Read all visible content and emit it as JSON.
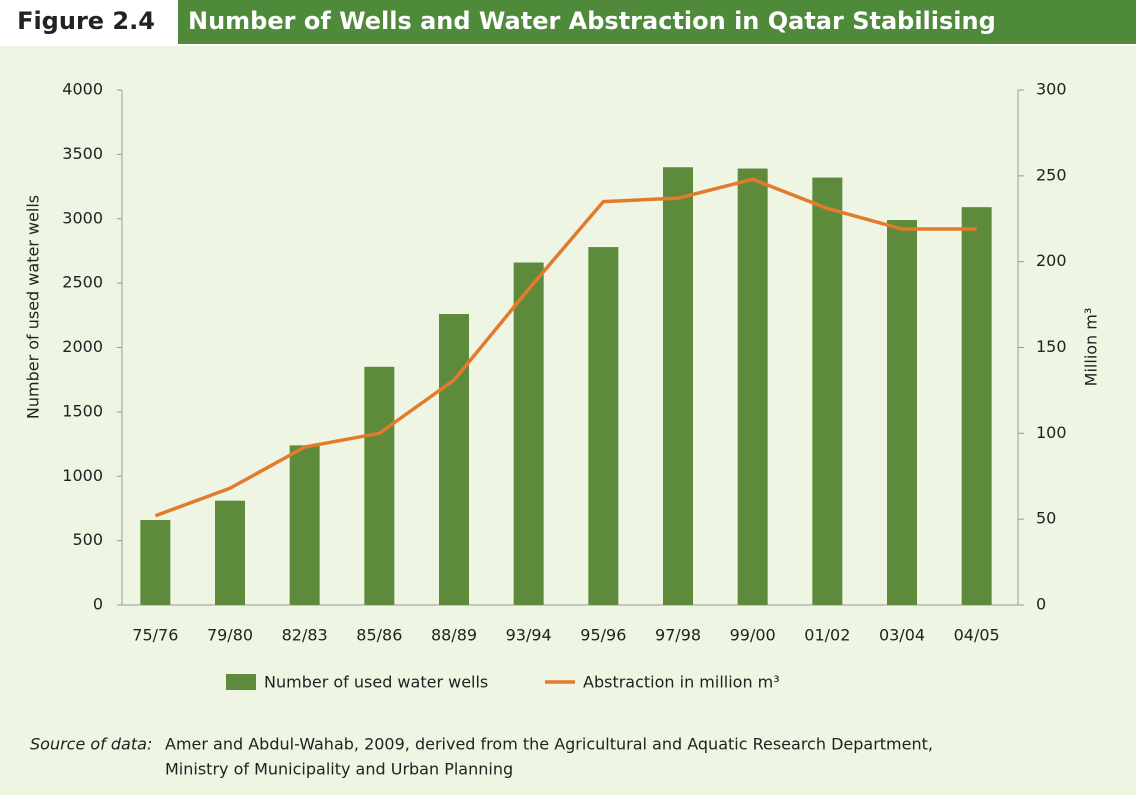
{
  "figure_label": "Figure 2.4",
  "chart_data": {
    "type": "bar",
    "title": "Number of Wells and Water Abstraction in Qatar Stabilising",
    "categories": [
      "75/76",
      "79/80",
      "82/83",
      "85/86",
      "88/89",
      "93/94",
      "95/96",
      "97/98",
      "99/00",
      "01/02",
      "03/04",
      "04/05"
    ],
    "series": [
      {
        "name": "Number of used water wells",
        "type": "bar",
        "color": "#5e8b3b",
        "values": [
          660,
          810,
          1240,
          1850,
          2260,
          2660,
          2780,
          3400,
          3390,
          3320,
          2990,
          3090
        ]
      },
      {
        "name": "Abstraction in million m³",
        "type": "line",
        "axis": "y2",
        "color": "#e37b2c",
        "values": [
          52,
          68,
          92,
          100,
          131,
          184,
          235,
          237,
          248,
          231,
          219,
          219
        ]
      }
    ],
    "ylabel": "Number of used water wells",
    "y2label": "Million m³",
    "ylim": [
      0,
      4000
    ],
    "yticks": [
      0,
      500,
      1000,
      1500,
      2000,
      2500,
      3000,
      3500,
      4000
    ],
    "y2lim": [
      0,
      300
    ],
    "y2ticks": [
      0,
      50,
      100,
      150,
      200,
      250,
      300
    ],
    "legend": "bottom"
  },
  "source": {
    "label": "Source of data:",
    "lines": [
      "Amer and Abdul-Wahab, 2009, derived from the Agricultural and Aquatic Research Department,",
      "Ministry of Municipality and Urban Planning"
    ]
  }
}
